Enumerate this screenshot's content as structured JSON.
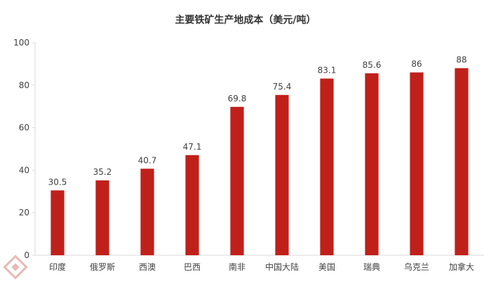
{
  "chart_data": {
    "type": "bar",
    "title": "主要铁矿生产地成本（美元/吨）",
    "categories": [
      "印度",
      "俄罗斯",
      "西澳",
      "巴西",
      "南非",
      "中国大陆",
      "美国",
      "瑞典",
      "乌克兰",
      "加拿大"
    ],
    "values": [
      30.5,
      35.2,
      40.7,
      47.1,
      69.8,
      75.4,
      83.1,
      85.6,
      86,
      88
    ],
    "value_labels": [
      "30.5",
      "35.2",
      "40.7",
      "47.1",
      "69.8",
      "75.4",
      "83.1",
      "85.6",
      "86",
      "88"
    ],
    "xlabel": "",
    "ylabel": "",
    "ylim": [
      0,
      100
    ],
    "yticks": [
      0,
      20,
      40,
      60,
      80,
      100
    ],
    "grid": false,
    "legend": "none",
    "bar_color": "#C0201A",
    "axis_color": "#D9D9D9",
    "text_color": "#404040"
  }
}
